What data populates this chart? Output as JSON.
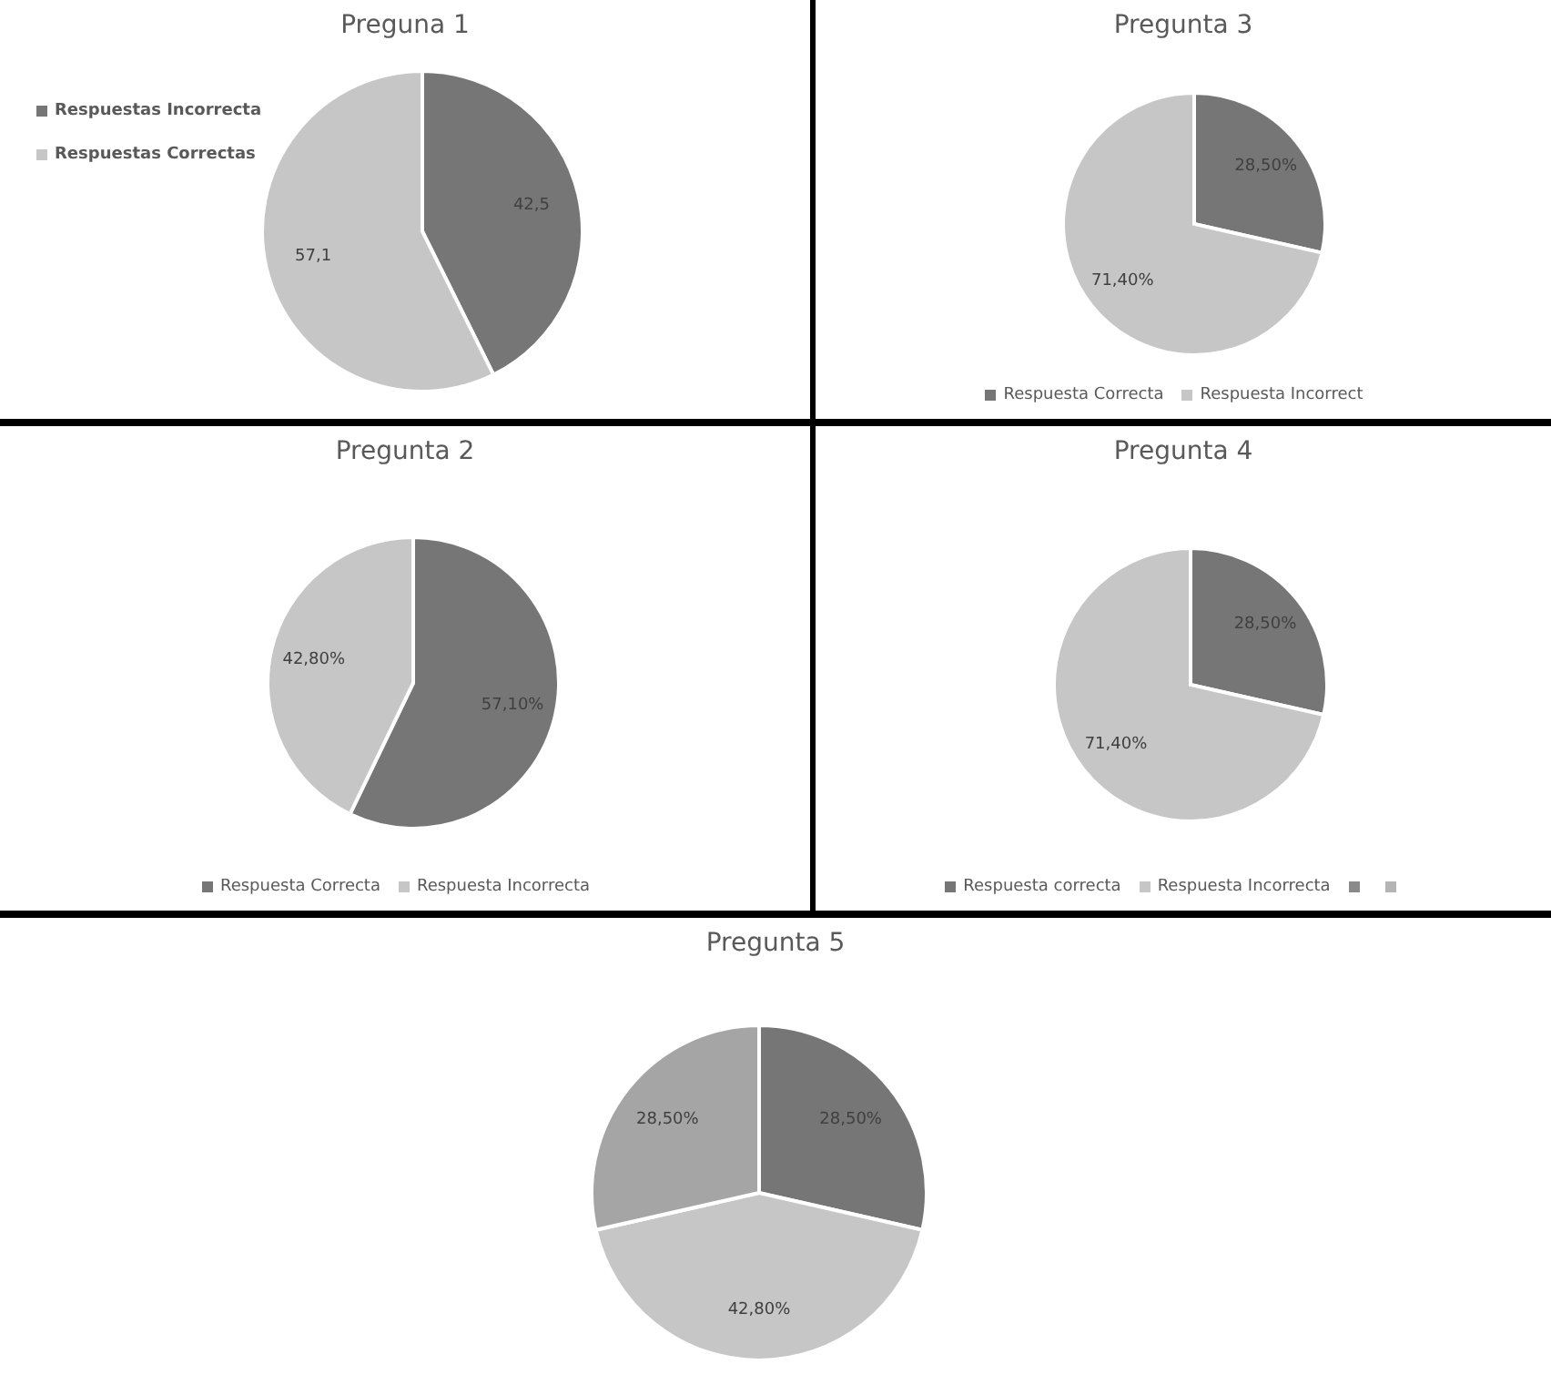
{
  "chart_data": [
    {
      "type": "pie",
      "title": "Preguna 1",
      "categories": [
        "Respuestas Incorrecta",
        "Respuestas Correctas"
      ],
      "values": [
        42.5,
        57.1
      ],
      "value_labels": [
        "42,5",
        "57,1"
      ],
      "colors": [
        "#767676",
        "#c6c6c6"
      ],
      "legend": "left"
    },
    {
      "type": "pie",
      "title": "Pregunta 3",
      "categories": [
        "Respuesta Correcta",
        "Respuesta Incorrect"
      ],
      "values": [
        28.5,
        71.4
      ],
      "value_labels": [
        "28,50%",
        "71,40%"
      ],
      "colors": [
        "#767676",
        "#c6c6c6"
      ],
      "legend": "bottom"
    },
    {
      "type": "pie",
      "title": "Pregunta 2",
      "categories": [
        "Respuesta Correcta",
        "Respuesta Incorrecta"
      ],
      "values": [
        57.1,
        42.8
      ],
      "value_labels": [
        "57,10%",
        "42,80%"
      ],
      "colors": [
        "#767676",
        "#c6c6c6"
      ],
      "legend": "bottom"
    },
    {
      "type": "pie",
      "title": "Pregunta 4",
      "categories": [
        "Respuesta correcta",
        "Respuesta Incorrecta",
        null,
        null
      ],
      "values": [
        28.5,
        71.4,
        0,
        0
      ],
      "value_labels": [
        "28,50%",
        "71,40%",
        null,
        null
      ],
      "colors": [
        "#767676",
        "#c6c6c6",
        "#8a8a8a",
        "#b4b4b4"
      ],
      "legend": "bottom"
    },
    {
      "type": "pie",
      "title": "Pregunta 5",
      "categories": [
        null,
        null,
        null
      ],
      "values": [
        28.5,
        42.8,
        28.5
      ],
      "value_labels": [
        "28,50%",
        "42,80%",
        "28,50%"
      ],
      "colors": [
        "#767676",
        "#c6c6c6",
        "#a5a5a5"
      ]
    }
  ]
}
